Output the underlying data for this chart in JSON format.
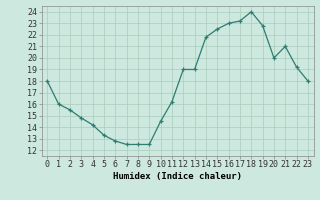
{
  "x": [
    0,
    1,
    2,
    3,
    4,
    5,
    6,
    7,
    8,
    9,
    10,
    11,
    12,
    13,
    14,
    15,
    16,
    17,
    18,
    19,
    20,
    21,
    22,
    23
  ],
  "y": [
    18,
    16,
    15.5,
    14.8,
    14.2,
    13.3,
    12.8,
    12.5,
    12.5,
    12.5,
    14.5,
    16.2,
    19.0,
    19.0,
    21.8,
    22.5,
    23.0,
    23.2,
    24.0,
    22.8,
    20.0,
    21.0,
    19.2,
    18.0
  ],
  "xlabel": "Humidex (Indice chaleur)",
  "xlim": [
    -0.5,
    23.5
  ],
  "ylim": [
    11.5,
    24.5
  ],
  "yticks": [
    12,
    13,
    14,
    15,
    16,
    17,
    18,
    19,
    20,
    21,
    22,
    23,
    24
  ],
  "xticks": [
    0,
    1,
    2,
    3,
    4,
    5,
    6,
    7,
    8,
    9,
    10,
    11,
    12,
    13,
    14,
    15,
    16,
    17,
    18,
    19,
    20,
    21,
    22,
    23
  ],
  "line_color": "#2e7d6e",
  "marker": "+",
  "bg_color": "#cce8df",
  "grid_color": "#aaccbb",
  "axis_fontsize": 6.5,
  "tick_fontsize": 6.0
}
